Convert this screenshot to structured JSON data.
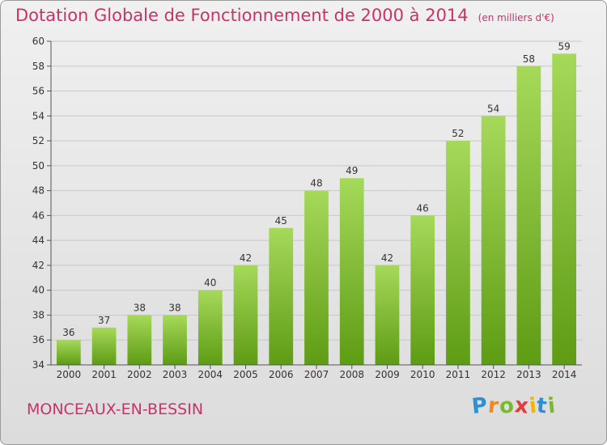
{
  "title": "Dotation Globale de Fonctionnement de 2000 à 2014",
  "unit": "(en milliers d'€)",
  "commune": "MONCEAUX-EN-BESSIN",
  "logo": {
    "letters": [
      "P",
      "r",
      "o",
      "x",
      "i",
      "t",
      "i"
    ],
    "colors": [
      "#2f8fd0",
      "#f08a1c",
      "#7ab82e",
      "#e23b3b",
      "#f5b400",
      "#2f8fd0",
      "#7ab82e"
    ]
  },
  "colors": {
    "bar_top": "#a6d95a",
    "bar_bottom": "#5e9c14",
    "title": "#c8336a"
  },
  "chart_data": {
    "type": "bar",
    "title": "Dotation Globale de Fonctionnement de 2000 à 2014",
    "categories": [
      "2000",
      "2001",
      "2002",
      "2003",
      "2004",
      "2005",
      "2006",
      "2007",
      "2008",
      "2009",
      "2010",
      "2011",
      "2012",
      "2013",
      "2014"
    ],
    "values": [
      36,
      37,
      38,
      38,
      40,
      42,
      45,
      48,
      49,
      42,
      46,
      52,
      54,
      58,
      59
    ],
    "ylim": [
      34,
      60
    ],
    "yticks": [
      34,
      36,
      38,
      40,
      42,
      44,
      46,
      48,
      50,
      52,
      54,
      56,
      58,
      60
    ],
    "grid": true,
    "xlabel": "",
    "ylabel": ""
  }
}
